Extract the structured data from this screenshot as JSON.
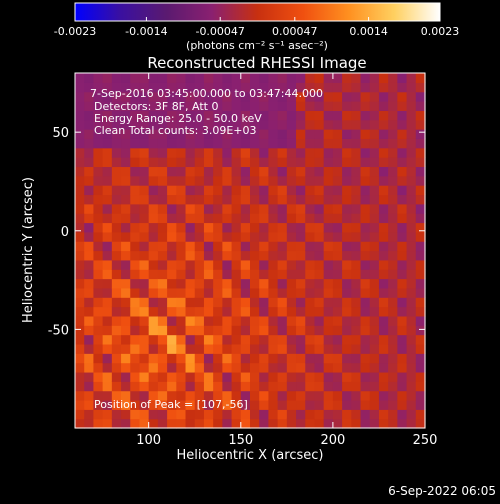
{
  "colorbar": {
    "ticks": [
      -0.0023,
      -0.0014,
      -0.00047,
      0.00047,
      0.0014,
      0.0023
    ],
    "tick_labels": [
      "-0.0023",
      "-0.0014",
      "-0.00047",
      "0.00047",
      "0.0014",
      "0.0023"
    ],
    "range": [
      -0.0023,
      0.0023
    ],
    "unit_label": "(photons cm⁻² s⁻¹ asec⁻²)",
    "colormap": [
      "#0000ff",
      "#3a10a0",
      "#5a1a70",
      "#8a2070",
      "#c83010",
      "#f05010",
      "#ff9020",
      "#ffd060",
      "#ffffff"
    ]
  },
  "chart_data": {
    "type": "heatmap",
    "title": "Reconstructed RHESSI Image",
    "xlabel": "Heliocentric X (arcsec)",
    "ylabel": "Heliocentric Y (arcsec)",
    "xlim": [
      60,
      250
    ],
    "ylim": [
      -100,
      80
    ],
    "xticks": [
      100,
      150,
      200,
      250
    ],
    "yticks": [
      50,
      0,
      -50
    ],
    "annotations": [
      "7-Sep-2016 03:45:00.000 to 03:47:44.000",
      "Detectors: 3F 8F, Att 0",
      "Energy Range: 25.0 - 50.0 keV",
      "Clean     Total counts: 3.09E+03",
      "Position of Peak = [107,-56]"
    ],
    "peak_position": [
      107,
      -56
    ],
    "colors": {
      "background": "#000000",
      "axes": "#ffffff",
      "text": "#ffffff"
    }
  },
  "footer": {
    "timestamp": "6-Sep-2022 06:05"
  }
}
